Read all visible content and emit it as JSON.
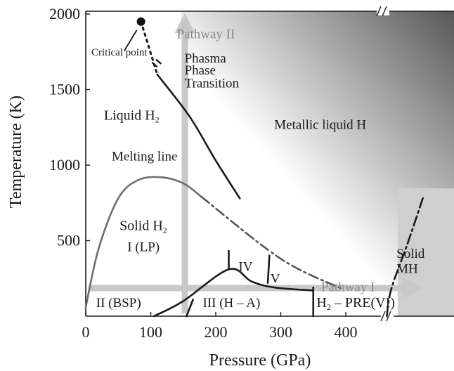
{
  "chart_data": {
    "type": "line",
    "xlabel": "Pressure (GPa)",
    "ylabel": "Temperature (K)",
    "xlim": [
      0,
      500
    ],
    "ylim": [
      0,
      2000
    ],
    "x_ticks": [
      "0",
      "100",
      "200",
      "300",
      "400"
    ],
    "y_ticks": [
      "500",
      "1000",
      "1500",
      "2000"
    ],
    "axis_break_symbol": "//",
    "grid": false,
    "colors": {
      "gradient_light": "#ffffff",
      "gradient_dark": "#3a3a3a",
      "pathway_arrow": "#c8c8c8",
      "line": "#1a1a1a",
      "melting_line": "#6e6e6e"
    },
    "critical_point": {
      "x": 85,
      "y": 1950,
      "label": "Critical point"
    },
    "series": [
      {
        "style": "solid",
        "points": [
          [
            0,
            60
          ],
          [
            20,
            450
          ],
          [
            50,
            780
          ],
          [
            80,
            900
          ],
          [
            115,
            920
          ],
          [
            150,
            880
          ],
          [
            178,
            790
          ]
        ]
      },
      {
        "style": "dash-dot",
        "points": [
          [
            178,
            790
          ],
          [
            300,
            380
          ],
          [
            395,
            180
          ]
        ]
      },
      {
        "style": "dotted",
        "points": [
          [
            85,
            1950
          ],
          [
            110,
            1600
          ]
        ]
      },
      {
        "style": "solid",
        "points": [
          [
            110,
            1600
          ],
          [
            160,
            1320
          ],
          [
            200,
            1030
          ],
          [
            237,
            780
          ]
        ]
      },
      {
        "style": "solid",
        "points": [
          [
            105,
            0
          ],
          [
            150,
            100
          ],
          [
            220,
            310
          ],
          [
            255,
            230
          ],
          [
            290,
            190
          ],
          [
            350,
            170
          ]
        ]
      },
      {
        "style": "solid",
        "points": [
          [
            155,
            0
          ],
          [
            165,
            110
          ]
        ]
      },
      {
        "style": "solid",
        "points": [
          [
            220,
            310
          ],
          [
            220,
            460
          ]
        ]
      },
      {
        "style": "solid",
        "points": [
          [
            280,
            220
          ],
          [
            283,
            430
          ]
        ]
      },
      {
        "style": "solid",
        "points": [
          [
            350,
            0
          ],
          [
            350,
            190
          ]
        ]
      },
      {
        "style": "dash-dot",
        "points": [
          [
            463,
            0
          ],
          [
            470,
            180
          ],
          [
            495,
            480
          ],
          [
            520,
            800
          ]
        ]
      }
    ],
    "annotations": [
      {
        "text": "Pathway II",
        "x": 140,
        "y": 1840,
        "color": "gray"
      },
      {
        "text": "Phasma",
        "x": 152,
        "y": 1680
      },
      {
        "text": "Phase",
        "x": 152,
        "y": 1600
      },
      {
        "text": "Transition",
        "x": 152,
        "y": 1515
      },
      {
        "text": "Liquid H",
        "sub": "2",
        "x": 28,
        "y": 1300
      },
      {
        "text": "Metallic liquid H",
        "x": 290,
        "y": 1240
      },
      {
        "text": "Melting line",
        "x": 40,
        "y": 1030
      },
      {
        "text": "Solid H",
        "sub": "2",
        "x": 52,
        "y": 570
      },
      {
        "text": "I (LP)",
        "x": 64,
        "y": 430
      },
      {
        "text": "IV",
        "x": 235,
        "y": 300
      },
      {
        "text": "V",
        "x": 284,
        "y": 220
      },
      {
        "text": "Solid",
        "x": 478,
        "y": 385
      },
      {
        "text": "MH",
        "x": 478,
        "y": 285
      },
      {
        "text": "Pathway I",
        "x": 362,
        "y": 165,
        "color": "gray"
      },
      {
        "text": "II (BSP)",
        "x": 16,
        "y": 60
      },
      {
        "text": "III (H – A)",
        "x": 180,
        "y": 60
      },
      {
        "text": "H",
        "sub": "2",
        "suffix": " – PRE(VI)",
        "x": 355,
        "y": 60
      }
    ]
  }
}
